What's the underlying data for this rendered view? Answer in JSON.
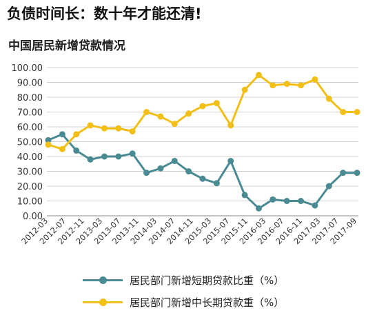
{
  "headline": "负债时间长：数十年才能还清!",
  "chart_data": {
    "type": "line",
    "title": "中国居民新增贷款情况",
    "xlabel": "",
    "ylabel": "",
    "ylim": [
      0,
      100
    ],
    "yticks": [
      "0.00",
      "10.00",
      "20.00",
      "30.00",
      "40.00",
      "50.00",
      "60.00",
      "70.00",
      "80.00",
      "90.00",
      "100.00"
    ],
    "x_ticks": [
      "2012-03",
      "2012-07",
      "2012-11",
      "2013-03",
      "2013-07",
      "2013-11",
      "2014-03",
      "2014-07",
      "2014-11",
      "2015-03",
      "2015-07",
      "2015-11",
      "2016-03",
      "2016-07",
      "2016-11",
      "2017-03",
      "2017-07",
      "2017-09"
    ],
    "grid": true,
    "legend_position": "bottom",
    "series": [
      {
        "name": "居民部门新增短期贷款比重（%）",
        "color": "#4a8a92",
        "values": [
          51,
          55,
          44,
          38,
          40,
          40,
          42,
          29,
          32,
          37,
          30,
          25,
          22,
          37,
          14,
          5,
          11,
          10,
          10,
          7,
          20,
          29,
          29
        ]
      },
      {
        "name": "居民部门新增中长期贷款重（%）",
        "color": "#f2bf17",
        "values": [
          48,
          45,
          55,
          61,
          59,
          59,
          57,
          70,
          67,
          62,
          69,
          74,
          76,
          61,
          85,
          95,
          88,
          89,
          88,
          92,
          79,
          70,
          70
        ]
      }
    ]
  }
}
